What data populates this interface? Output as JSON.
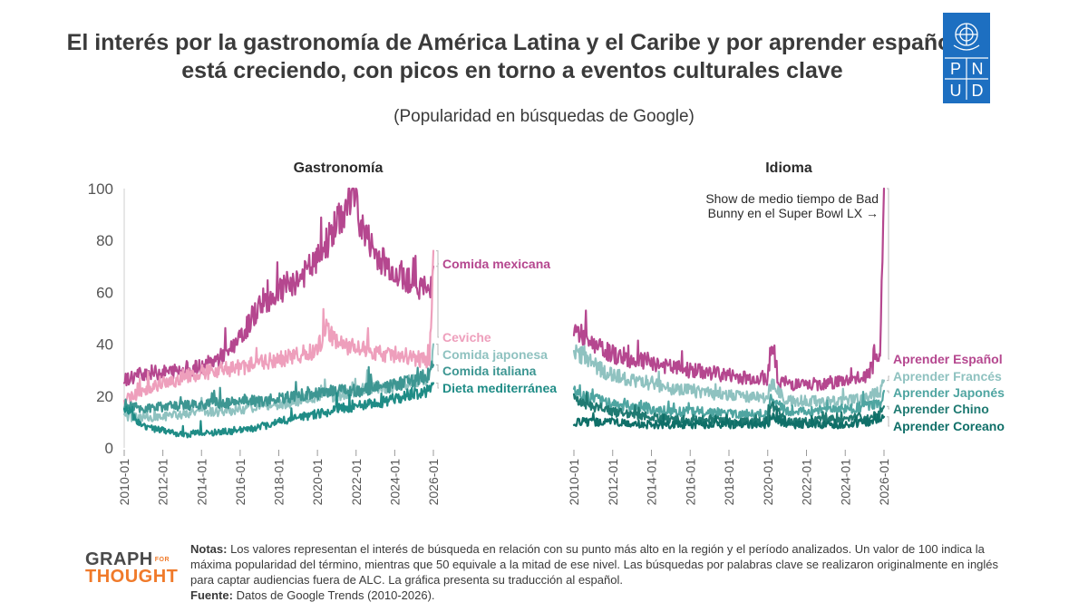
{
  "title": "El interés por la gastronomía de América Latina y el Caribe y por aprender español está creciendo, con picos en torno a eventos culturales clave",
  "subtitle": "(Popularidad en búsquedas de Google)",
  "logo": {
    "letters": [
      "P",
      "N",
      "U",
      "D"
    ],
    "color": "#1d6fc1"
  },
  "footer": {
    "brand_top": "GRAPH",
    "brand_for": "FOR",
    "brand_bottom": "THOUGHT",
    "notes_label": "Notas:",
    "notes_text": "Los valores representan el interés de búsqueda en relación con su punto más alto en la región y el período analizados. Un valor de 100 indica la máxima popularidad del término, mientras que 50 equivale a la mitad de ese nivel. Las búsquedas por palabras clave se realizaron originalmente en inglés para captar audiencias fuera de ALC. La gráfica presenta su traducción al español.",
    "source_label": "Fuente:",
    "source_text": "Datos de Google Trends (2010-2026)."
  },
  "chart_data": [
    {
      "type": "line",
      "title": "Gastronomía",
      "x_ticks": [
        "2010-01",
        "2012-01",
        "2014-01",
        "2016-01",
        "2018-01",
        "2020-01",
        "2022-01",
        "2024-01",
        "2026-01"
      ],
      "ylim": [
        0,
        100
      ],
      "y_ticks": [
        0,
        20,
        40,
        60,
        80,
        100
      ],
      "grid": false,
      "series": [
        {
          "name": "Comida mexicana",
          "color": "#b5478f",
          "points": [
            [
              2010,
              26
            ],
            [
              2011,
              29
            ],
            [
              2012,
              29
            ],
            [
              2013,
              30
            ],
            [
              2014,
              31
            ],
            [
              2015,
              35
            ],
            [
              2016,
              42
            ],
            [
              2017,
              55
            ],
            [
              2018,
              60
            ],
            [
              2019,
              65
            ],
            [
              2020,
              72
            ],
            [
              2020.8,
              84
            ],
            [
              2021.5,
              92
            ],
            [
              2021.8,
              100
            ],
            [
              2022.3,
              85
            ],
            [
              2023,
              75
            ],
            [
              2024,
              68
            ],
            [
              2025,
              64
            ],
            [
              2025.8,
              60
            ],
            [
              2026,
              70
            ]
          ]
        },
        {
          "name": "Ceviche",
          "color": "#ee9fbc",
          "points": [
            [
              2010,
              18
            ],
            [
              2011,
              22
            ],
            [
              2012,
              25
            ],
            [
              2013,
              27
            ],
            [
              2014,
              29
            ],
            [
              2015,
              30
            ],
            [
              2016,
              31
            ],
            [
              2017,
              33
            ],
            [
              2018,
              34
            ],
            [
              2019,
              36
            ],
            [
              2020,
              38
            ],
            [
              2020.5,
              47
            ],
            [
              2021,
              40
            ],
            [
              2022,
              38
            ],
            [
              2023,
              37
            ],
            [
              2024,
              36
            ],
            [
              2025,
              35
            ],
            [
              2025.8,
              33
            ],
            [
              2026,
              76
            ]
          ]
        },
        {
          "name": "Comida japonesa",
          "color": "#8fc2c0",
          "points": [
            [
              2010,
              12
            ],
            [
              2011,
              12
            ],
            [
              2012,
              12
            ],
            [
              2013,
              13
            ],
            [
              2014,
              14
            ],
            [
              2015,
              14
            ],
            [
              2016,
              15
            ],
            [
              2017,
              16
            ],
            [
              2018,
              17
            ],
            [
              2019,
              18
            ],
            [
              2020,
              20
            ],
            [
              2021,
              20
            ],
            [
              2022,
              22
            ],
            [
              2023,
              23
            ],
            [
              2024,
              24
            ],
            [
              2025,
              26
            ],
            [
              2025.8,
              27
            ],
            [
              2026,
              40
            ]
          ]
        },
        {
          "name": "Comida italiana",
          "color": "#3d9692",
          "points": [
            [
              2010,
              17
            ],
            [
              2011,
              15
            ],
            [
              2012,
              16
            ],
            [
              2013,
              16
            ],
            [
              2014,
              17
            ],
            [
              2015,
              17
            ],
            [
              2016,
              18
            ],
            [
              2017,
              18
            ],
            [
              2018,
              19
            ],
            [
              2019,
              20
            ],
            [
              2020,
              21
            ],
            [
              2021,
              22
            ],
            [
              2022,
              22
            ],
            [
              2023,
              23
            ],
            [
              2024,
              24
            ],
            [
              2025,
              26
            ],
            [
              2025.8,
              28
            ],
            [
              2026,
              32
            ]
          ]
        },
        {
          "name": "Dieta mediterránea",
          "color": "#1f8c86",
          "points": [
            [
              2010,
              16
            ],
            [
              2011,
              8
            ],
            [
              2012,
              7
            ],
            [
              2013,
              5
            ],
            [
              2014,
              6
            ],
            [
              2015,
              6
            ],
            [
              2016,
              7
            ],
            [
              2017,
              8
            ],
            [
              2018,
              10
            ],
            [
              2019,
              12
            ],
            [
              2020,
              13
            ],
            [
              2021,
              15
            ],
            [
              2022,
              16
            ],
            [
              2023,
              17
            ],
            [
              2024,
              19
            ],
            [
              2025,
              21
            ],
            [
              2025.8,
              22
            ],
            [
              2026,
              25
            ]
          ]
        }
      ]
    },
    {
      "type": "line",
      "title": "Idioma",
      "x_ticks": [
        "2010-01",
        "2012-01",
        "2014-01",
        "2016-01",
        "2018-01",
        "2020-01",
        "2022-01",
        "2024-01",
        "2026-01"
      ],
      "ylim": [
        0,
        100
      ],
      "grid": false,
      "annotation": "Show de medio tiempo de Bad Bunny en el Super Bowl LX →",
      "annotation_lines": [
        "Show de medio tiempo de Bad",
        "Bunny en el Super Bowl LX →"
      ],
      "series": [
        {
          "name": "Aprender Español",
          "color": "#b5478f",
          "points": [
            [
              2010,
              46
            ],
            [
              2011,
              40
            ],
            [
              2012,
              36
            ],
            [
              2013,
              34
            ],
            [
              2014,
              33
            ],
            [
              2015,
              31
            ],
            [
              2016,
              30
            ],
            [
              2017,
              29
            ],
            [
              2018,
              28
            ],
            [
              2019,
              27
            ],
            [
              2020,
              27
            ],
            [
              2020.2,
              42
            ],
            [
              2020.5,
              26
            ],
            [
              2021,
              25
            ],
            [
              2022,
              24
            ],
            [
              2023,
              25
            ],
            [
              2024,
              26
            ],
            [
              2025,
              27
            ],
            [
              2025.8,
              35
            ],
            [
              2026,
              100
            ]
          ]
        },
        {
          "name": "Aprender Francés",
          "color": "#8fc2c0",
          "points": [
            [
              2010,
              38
            ],
            [
              2011,
              32
            ],
            [
              2012,
              28
            ],
            [
              2013,
              26
            ],
            [
              2014,
              25
            ],
            [
              2015,
              23
            ],
            [
              2016,
              22
            ],
            [
              2017,
              21
            ],
            [
              2018,
              20
            ],
            [
              2019,
              20
            ],
            [
              2020,
              19
            ],
            [
              2020.2,
              25
            ],
            [
              2021,
              18
            ],
            [
              2022,
              18
            ],
            [
              2023,
              18
            ],
            [
              2024,
              18
            ],
            [
              2025,
              19
            ],
            [
              2025.8,
              22
            ],
            [
              2026,
              26
            ]
          ]
        },
        {
          "name": "Aprender Japonés",
          "color": "#4fa5a1",
          "points": [
            [
              2010,
              22
            ],
            [
              2011,
              19
            ],
            [
              2012,
              17
            ],
            [
              2013,
              16
            ],
            [
              2014,
              15
            ],
            [
              2015,
              14
            ],
            [
              2016,
              14
            ],
            [
              2017,
              14
            ],
            [
              2018,
              13
            ],
            [
              2019,
              13
            ],
            [
              2020,
              13
            ],
            [
              2020.2,
              20
            ],
            [
              2021,
              14
            ],
            [
              2022,
              14
            ],
            [
              2023,
              15
            ],
            [
              2024,
              15
            ],
            [
              2025,
              16
            ],
            [
              2025.8,
              17
            ],
            [
              2026,
              22
            ]
          ]
        },
        {
          "name": "Aprender Chino",
          "color": "#1f7a72",
          "points": [
            [
              2010,
              19
            ],
            [
              2011,
              16
            ],
            [
              2012,
              14
            ],
            [
              2013,
              13
            ],
            [
              2014,
              12
            ],
            [
              2015,
              11
            ],
            [
              2016,
              11
            ],
            [
              2017,
              11
            ],
            [
              2018,
              10
            ],
            [
              2019,
              10
            ],
            [
              2020,
              10
            ],
            [
              2020.2,
              17
            ],
            [
              2021,
              10
            ],
            [
              2022,
              10
            ],
            [
              2023,
              11
            ],
            [
              2024,
              11
            ],
            [
              2025,
              12
            ],
            [
              2025.8,
              13
            ],
            [
              2026,
              16
            ]
          ]
        },
        {
          "name": "Aprender Coreano",
          "color": "#0f6f68",
          "points": [
            [
              2010,
              10
            ],
            [
              2011,
              10
            ],
            [
              2012,
              10
            ],
            [
              2013,
              9
            ],
            [
              2014,
              9
            ],
            [
              2015,
              9
            ],
            [
              2016,
              9
            ],
            [
              2017,
              9
            ],
            [
              2018,
              9
            ],
            [
              2019,
              9
            ],
            [
              2020,
              9
            ],
            [
              2020.2,
              12
            ],
            [
              2021,
              9
            ],
            [
              2022,
              9
            ],
            [
              2023,
              9
            ],
            [
              2024,
              9
            ],
            [
              2025,
              10
            ],
            [
              2025.8,
              10
            ],
            [
              2026,
              12
            ]
          ]
        }
      ]
    }
  ]
}
